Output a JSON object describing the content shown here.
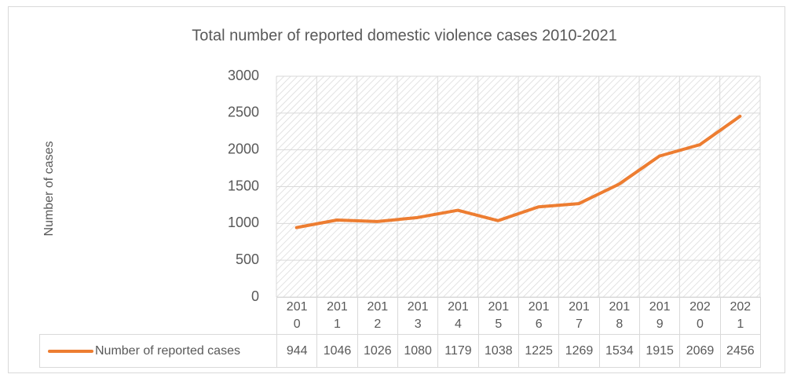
{
  "chart_data": {
    "type": "line",
    "title": "Total number of reported domestic violence cases 2010-2021",
    "y_label": "Number of cases",
    "categories": [
      "2010",
      "2011",
      "2012",
      "2013",
      "2014",
      "2015",
      "2016",
      "2017",
      "2018",
      "2019",
      "2020",
      "2021"
    ],
    "series": [
      {
        "name": "Number of reported cases",
        "color": "#ed7d31",
        "values": [
          944,
          1046,
          1026,
          1080,
          1179,
          1038,
          1225,
          1269,
          1534,
          1915,
          2069,
          2456
        ]
      }
    ],
    "ylim": [
      0,
      3000
    ],
    "yticks": [
      0,
      500,
      1000,
      1500,
      2000,
      2500,
      3000
    ],
    "grid": true
  }
}
